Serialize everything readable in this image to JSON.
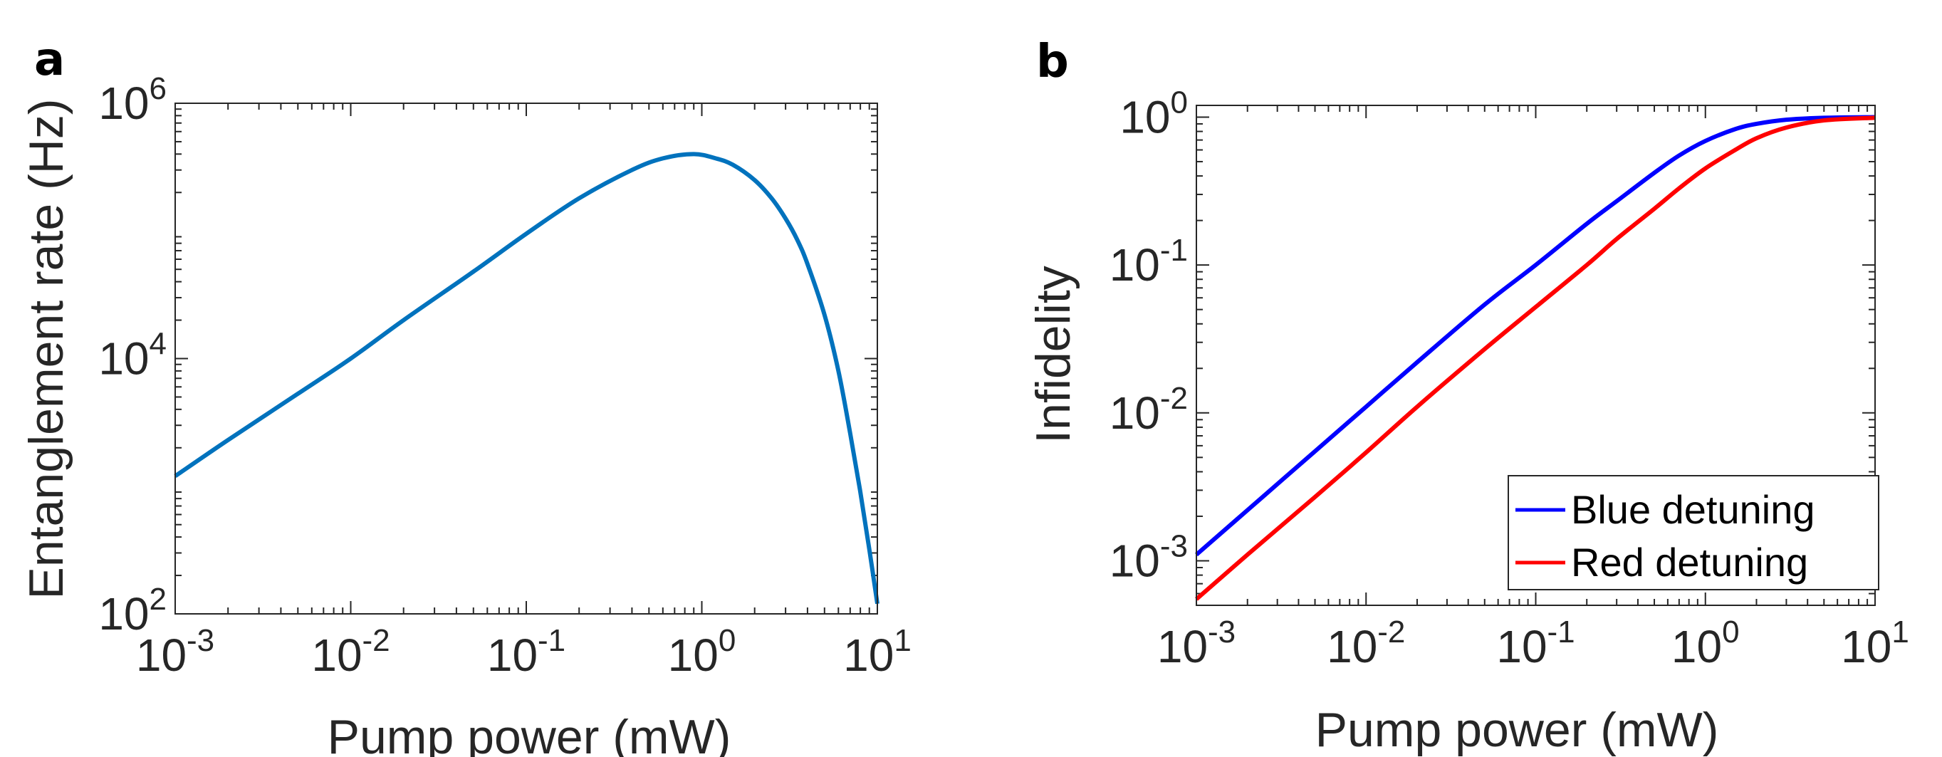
{
  "chart_data": [
    {
      "panel": "a",
      "type": "line",
      "xscale": "log",
      "yscale": "log",
      "xlabel": "Pump power (mW)",
      "ylabel": "Entanglement rate (Hz)",
      "xlim": [
        0.001,
        10
      ],
      "ylim": [
        100,
        1000000
      ],
      "xticks": [
        {
          "base": "10",
          "exp": "-3"
        },
        {
          "base": "10",
          "exp": "-2"
        },
        {
          "base": "10",
          "exp": "-1"
        },
        {
          "base": "10",
          "exp": "0"
        },
        {
          "base": "10",
          "exp": "1"
        }
      ],
      "yticks": [
        {
          "base": "10",
          "exp": "2"
        },
        {
          "base": "10",
          "exp": "4"
        },
        {
          "base": "10",
          "exp": "6"
        }
      ],
      "series": [
        {
          "name": "Entanglement rate",
          "color": "#0072BD",
          "x": [
            0.001,
            0.002,
            0.005,
            0.01,
            0.02,
            0.05,
            0.1,
            0.2,
            0.4,
            0.6,
            0.9,
            1.2,
            1.5,
            2,
            2.5,
            3,
            3.5,
            4,
            5,
            6,
            7,
            8,
            9,
            10
          ],
          "y": [
            1200,
            2300,
            5300,
            10000,
            20000,
            48000,
            95000,
            180000,
            300000,
            370000,
            400000,
            370000,
            330000,
            250000,
            180000,
            125000,
            85000,
            55000,
            22000,
            8000,
            2600,
            900,
            320,
            120
          ]
        }
      ]
    },
    {
      "panel": "b",
      "type": "line",
      "xscale": "log",
      "yscale": "log",
      "xlabel": "Pump power (mW)",
      "ylabel": "Infidelity",
      "xlim": [
        0.001,
        10
      ],
      "ylim": [
        0.0005,
        1.2
      ],
      "xticks": [
        {
          "base": "10",
          "exp": "-3"
        },
        {
          "base": "10",
          "exp": "-2"
        },
        {
          "base": "10",
          "exp": "-1"
        },
        {
          "base": "10",
          "exp": "0"
        },
        {
          "base": "10",
          "exp": "1"
        }
      ],
      "yticks": [
        {
          "base": "10",
          "exp": "-3"
        },
        {
          "base": "10",
          "exp": "-2"
        },
        {
          "base": "10",
          "exp": "-1"
        },
        {
          "base": "10",
          "exp": "0"
        }
      ],
      "legend_position": "bottom-right",
      "series": [
        {
          "name": "Blue detuning",
          "color": "#0000FF",
          "x": [
            0.001,
            0.002,
            0.005,
            0.01,
            0.02,
            0.05,
            0.1,
            0.2,
            0.3,
            0.5,
            0.7,
            1,
            1.5,
            2,
            3,
            5,
            10
          ],
          "y": [
            0.0011,
            0.0022,
            0.0055,
            0.011,
            0.022,
            0.054,
            0.1,
            0.19,
            0.27,
            0.42,
            0.55,
            0.69,
            0.83,
            0.9,
            0.96,
            0.99,
            1.0
          ]
        },
        {
          "name": "Red detuning",
          "color": "#FF0000",
          "x": [
            0.001,
            0.002,
            0.005,
            0.01,
            0.02,
            0.05,
            0.1,
            0.2,
            0.3,
            0.5,
            0.7,
            1,
            1.5,
            2,
            3,
            5,
            10
          ],
          "y": [
            0.00055,
            0.0011,
            0.0027,
            0.0054,
            0.011,
            0.027,
            0.052,
            0.1,
            0.15,
            0.24,
            0.33,
            0.45,
            0.6,
            0.72,
            0.85,
            0.95,
            0.99
          ]
        }
      ]
    }
  ]
}
